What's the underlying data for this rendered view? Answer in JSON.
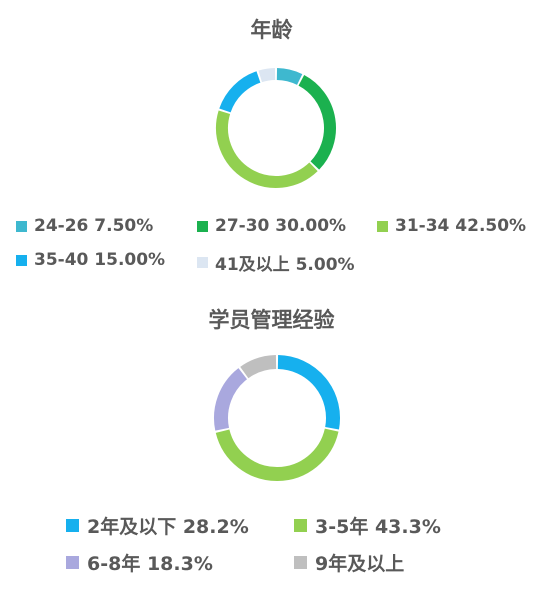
{
  "chart_data": [
    {
      "type": "pie",
      "title": "年龄",
      "categories": [
        "24-26",
        "27-30",
        "31-34",
        "35-40",
        "41及以上"
      ],
      "values": [
        7.5,
        30.0,
        42.5,
        15.0,
        5.0
      ],
      "colors": [
        "#3EB8CF",
        "#1BB14F",
        "#92D050",
        "#16B0EE",
        "#DCE6F2"
      ],
      "legend_labels": [
        "24-26 7.50%",
        "27-30 30.00%",
        "31-34 42.50%",
        "35-40 15.00%",
        "41及以上 5.00%"
      ],
      "legend_position": "bottom"
    },
    {
      "type": "pie",
      "title": "学员管理经验",
      "categories": [
        "2年及以下",
        "3-5年",
        "6-8年",
        "9年及以上"
      ],
      "values": [
        28.2,
        43.3,
        18.3,
        10.2
      ],
      "colors": [
        "#16B0EE",
        "#92D050",
        "#A9A8DE",
        "#BFBFBF"
      ],
      "legend_labels": [
        "2年及以下 28.2%",
        "3-5年 43.3%",
        "6-8年 18.3%",
        "9年及以上"
      ],
      "legend_position": "bottom"
    }
  ]
}
